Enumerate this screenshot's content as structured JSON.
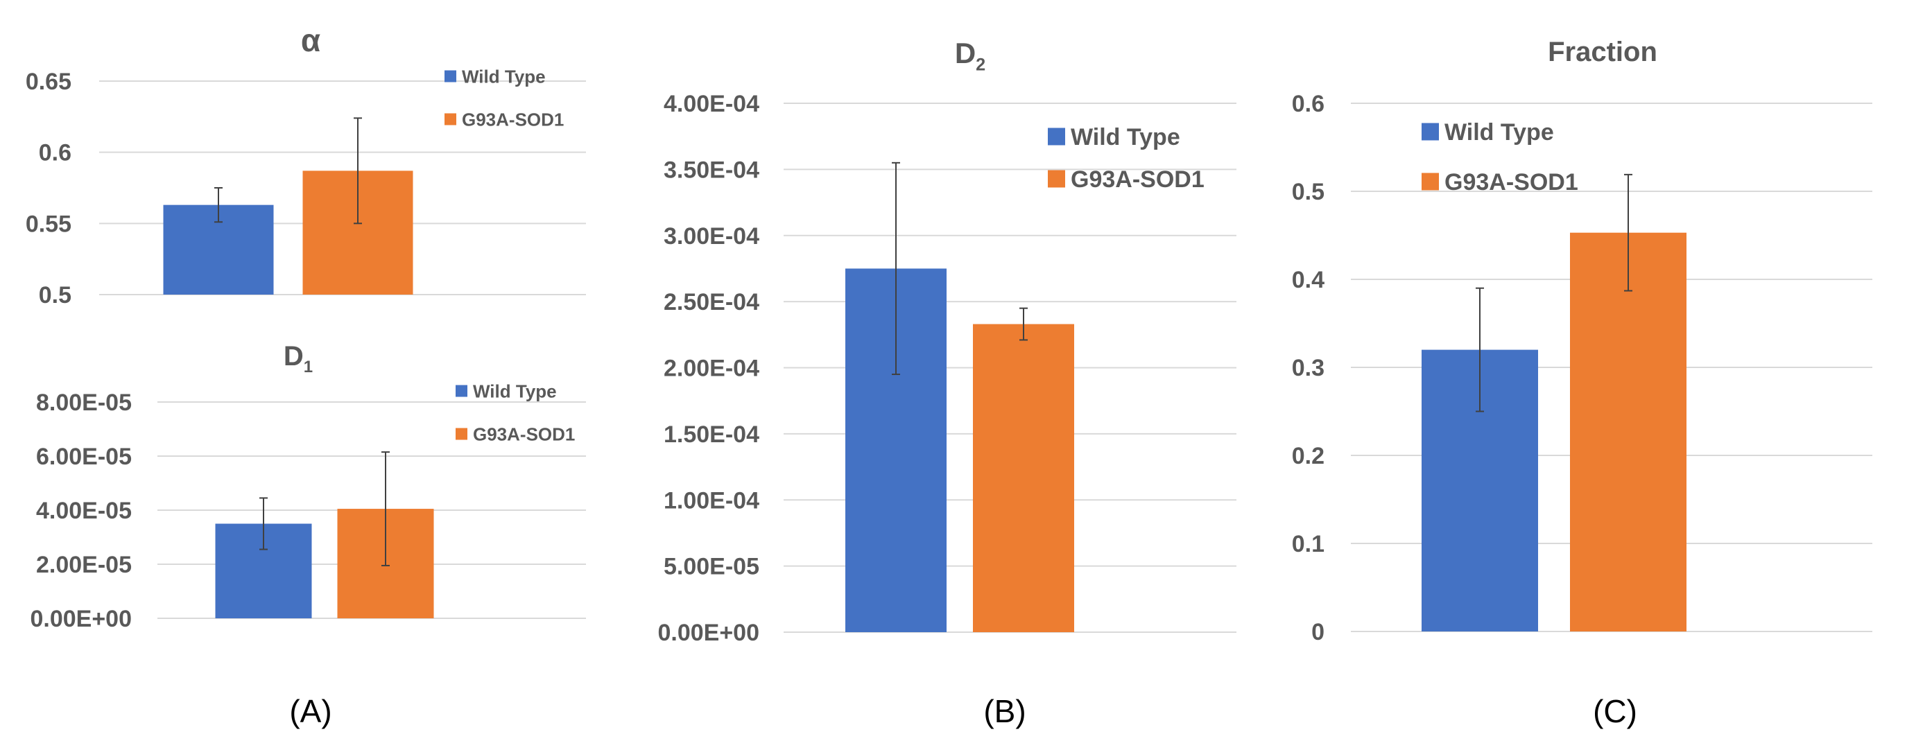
{
  "figure": {
    "colors": {
      "wild_type": "#4472C4",
      "g93a_sod1": "#ED7D31",
      "grid": "#D9D9D9",
      "text": "#595959",
      "error_bar": "#404040"
    },
    "panel_labels": [
      "(A)",
      "(B)",
      "(C)"
    ]
  },
  "chart_data": [
    {
      "id": "alpha",
      "type": "bar",
      "title": "α",
      "title_sub": "",
      "categories": [
        "Wild Type",
        "G93A-SOD1"
      ],
      "values": [
        0.563,
        0.587
      ],
      "errors": [
        0.012,
        0.037
      ],
      "ylim": [
        0.5,
        0.65
      ],
      "yticks": [
        0.5,
        0.55,
        0.6,
        0.65
      ],
      "ytick_labels": [
        "0.5",
        "0.55",
        "0.6",
        "0.65"
      ],
      "legend": [
        "Wild Type",
        "G93A-SOD1"
      ],
      "legend_position": "top-right",
      "grid": true
    },
    {
      "id": "d1",
      "type": "bar",
      "title": "D",
      "title_sub": "1",
      "categories": [
        "Wild Type",
        "G93A-SOD1"
      ],
      "values": [
        3.5e-05,
        4.05e-05
      ],
      "errors": [
        9.5e-06,
        2.1e-05
      ],
      "ylim": [
        0,
        8e-05
      ],
      "yticks": [
        0,
        2e-05,
        4e-05,
        6e-05,
        8e-05
      ],
      "ytick_labels": [
        "0.00E+00",
        "2.00E-05",
        "4.00E-05",
        "6.00E-05",
        "8.00E-05"
      ],
      "legend": [
        "Wild Type",
        "G93A-SOD1"
      ],
      "legend_position": "top-right",
      "grid": true
    },
    {
      "id": "d2",
      "type": "bar",
      "title": "D",
      "title_sub": "2",
      "categories": [
        "Wild Type",
        "G93A-SOD1"
      ],
      "values": [
        0.000275,
        0.000233
      ],
      "errors": [
        8e-05,
        1.2e-05
      ],
      "ylim": [
        0,
        0.0004
      ],
      "yticks": [
        0,
        5e-05,
        0.0001,
        0.00015,
        0.0002,
        0.00025,
        0.0003,
        0.00035,
        0.0004
      ],
      "ytick_labels": [
        "0.00E+00",
        "5.00E-05",
        "1.00E-04",
        "1.50E-04",
        "2.00E-04",
        "2.50E-04",
        "3.00E-04",
        "3.50E-04",
        "4.00E-04"
      ],
      "legend": [
        "Wild Type",
        "G93A-SOD1"
      ],
      "legend_position": "top-right",
      "grid": true
    },
    {
      "id": "fraction",
      "type": "bar",
      "title": "Fraction",
      "title_sub": "",
      "categories": [
        "Wild Type",
        "G93A-SOD1"
      ],
      "values": [
        0.32,
        0.453
      ],
      "errors": [
        0.07,
        0.066
      ],
      "ylim": [
        0,
        0.6
      ],
      "yticks": [
        0,
        0.1,
        0.2,
        0.3,
        0.4,
        0.5,
        0.6
      ],
      "ytick_labels": [
        "0",
        "0.1",
        "0.2",
        "0.3",
        "0.4",
        "0.5",
        "0.6"
      ],
      "legend": [
        "Wild Type",
        "G93A-SOD1"
      ],
      "legend_position": "top-left",
      "grid": true
    }
  ]
}
